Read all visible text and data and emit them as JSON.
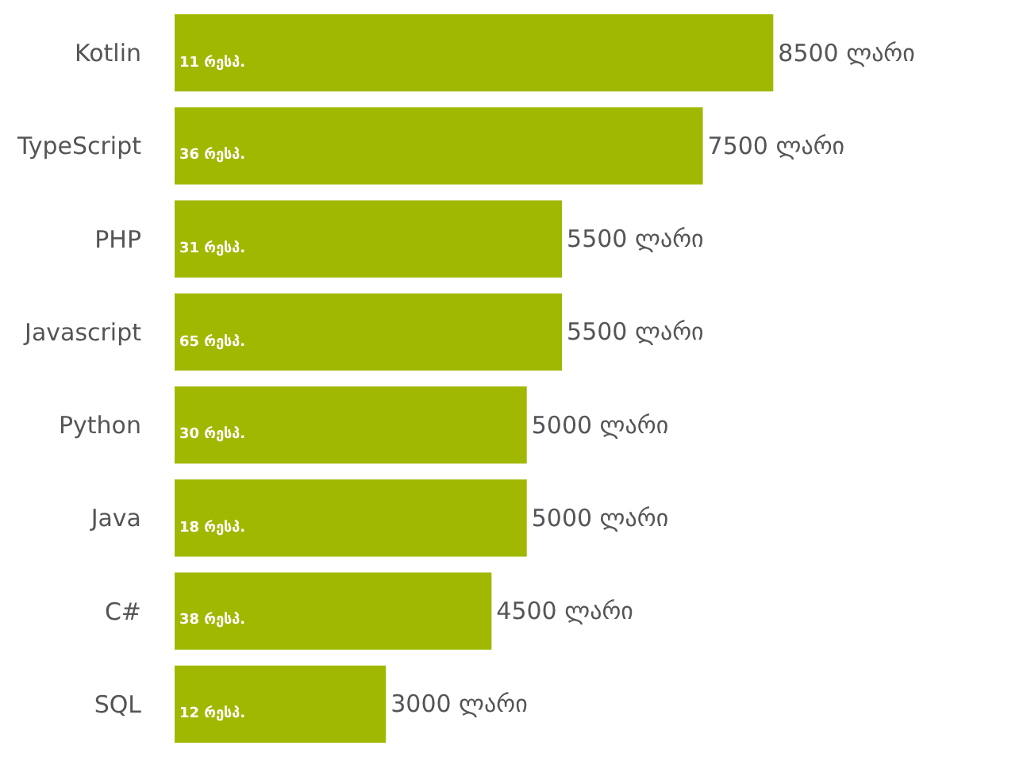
{
  "chart_data": {
    "type": "bar",
    "orientation": "horizontal",
    "categories": [
      "Kotlin",
      "TypeScript",
      "PHP",
      "Javascript",
      "Python",
      "Java",
      "C#",
      "SQL"
    ],
    "values": [
      8500,
      7500,
      5500,
      5500,
      5000,
      5000,
      4500,
      3000
    ],
    "value_labels": [
      "8500 ლარი",
      "7500 ლარი",
      "5500 ლარი",
      "5500 ლარი",
      "5000 ლარი",
      "5000 ლარი",
      "4500 ლარი",
      "3000 ლარი"
    ],
    "color": "#a0b800",
    "tick_labels": "y",
    "annotations": [
      {
        "text": "11 რესპ.",
        "y": "Kotlin"
      },
      {
        "text": "36 რესპ.",
        "y": "TypeScript"
      },
      {
        "text": "31 რესპ.",
        "y": "PHP"
      },
      {
        "text": "65 რესპ.",
        "y": "Javascript"
      },
      {
        "text": "30 რესპ.",
        "y": "Python"
      },
      {
        "text": "18 რესპ.",
        "y": "Java"
      },
      {
        "text": "38 რესპ.",
        "y": "C#"
      },
      {
        "text": "12 რესპ.",
        "y": "SQL"
      }
    ]
  }
}
